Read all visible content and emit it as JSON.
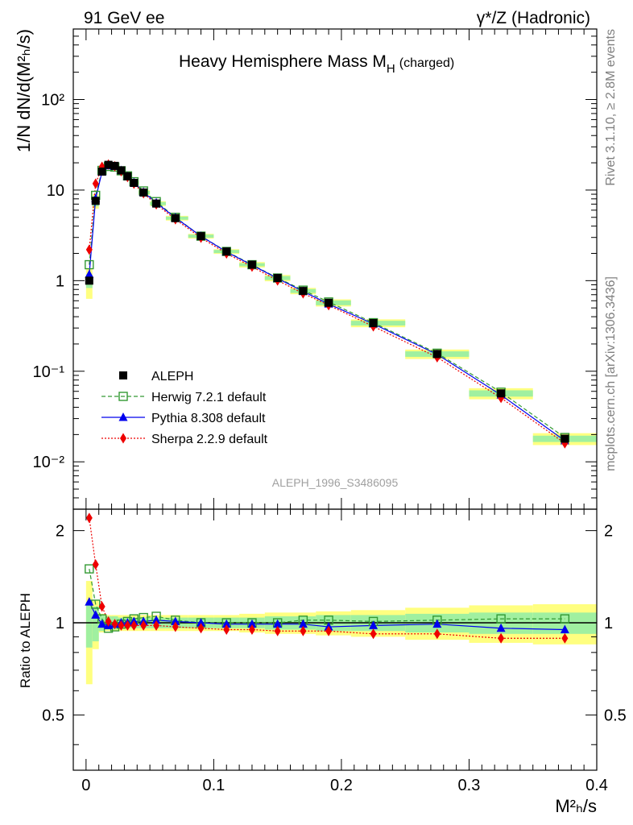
{
  "header": {
    "left": "91 GeV ee",
    "right": "γ*/Z (Hadronic)",
    "title_main": "Heavy Hemisphere Mass M",
    "title_sub": "H",
    "title_suffix": "(charged)"
  },
  "side_labels": {
    "rivet": "Rivet 3.1.10, ≥ 2.8M events",
    "mcplots": "mcplots.cern.ch [arXiv:1306.3436]"
  },
  "watermark": "ALEPH_1996_S3486095",
  "axes": {
    "ylabel_main": "1/N dN/d(M²ₕ/s)",
    "ylabel_ratio": "Ratio to ALEPH",
    "xlabel": "M²ₕ/s",
    "x_ticks": [
      "0",
      "0.1",
      "0.2",
      "0.3",
      "0.4"
    ],
    "y_ticks_main": [
      "10⁻²",
      "10⁻¹",
      "1",
      "10",
      "10²"
    ],
    "y_ticks_ratio": [
      "0.5",
      "1",
      "2"
    ]
  },
  "colors": {
    "data": "#000000",
    "herwig": "#339933",
    "pythia": "#0000ee",
    "sherpa": "#ee0000",
    "band_inner": "#a0f0a0",
    "band_outer": "#ffff80"
  },
  "chart_data": {
    "type": "line",
    "xlim": [
      -0.01,
      0.4
    ],
    "ylim_main": [
      0.003,
      600
    ],
    "ylim_ratio": [
      0.33,
      2.35
    ],
    "log_y": true,
    "legend_position": "middle-left",
    "x": [
      0.0025,
      0.0075,
      0.0125,
      0.0175,
      0.0225,
      0.0275,
      0.0325,
      0.0375,
      0.045,
      0.055,
      0.07,
      0.09,
      0.11,
      0.13,
      0.15,
      0.17,
      0.19,
      0.225,
      0.275,
      0.325,
      0.375
    ],
    "data": {
      "name": "ALEPH",
      "values": [
        1.0,
        7.6,
        16.0,
        19.0,
        18.5,
        16.5,
        14.2,
        12.0,
        9.4,
        7.1,
        4.9,
        3.1,
        2.1,
        1.5,
        1.07,
        0.77,
        0.57,
        0.34,
        0.155,
        0.057,
        0.018
      ],
      "band_inner": [
        0.17,
        0.13,
        0.06,
        0.05,
        0.05,
        0.04,
        0.04,
        0.04,
        0.04,
        0.04,
        0.04,
        0.04,
        0.04,
        0.04,
        0.05,
        0.05,
        0.06,
        0.06,
        0.07,
        0.08,
        0.08
      ],
      "band_outer": [
        0.37,
        0.18,
        0.07,
        0.06,
        0.06,
        0.06,
        0.06,
        0.06,
        0.06,
        0.06,
        0.06,
        0.06,
        0.06,
        0.07,
        0.08,
        0.08,
        0.09,
        0.1,
        0.12,
        0.14,
        0.15
      ]
    },
    "series": [
      {
        "name": "Herwig 7.2.1 default",
        "style": "dashed",
        "marker": "open-square",
        "ratio": [
          1.5,
          1.15,
          1.03,
          0.96,
          0.97,
          0.99,
          1.01,
          1.03,
          1.04,
          1.05,
          1.02,
          1.0,
          1.0,
          1.0,
          1.0,
          1.02,
          1.02,
          1.01,
          1.02,
          1.03,
          1.03
        ]
      },
      {
        "name": "Pythia 8.308 default",
        "style": "solid",
        "marker": "triangle",
        "ratio": [
          1.17,
          1.06,
          0.99,
          0.98,
          0.99,
          1.0,
          1.0,
          1.01,
          1.01,
          1.02,
          1.01,
          1.0,
          0.99,
          0.99,
          0.99,
          0.99,
          0.97,
          0.98,
          0.99,
          0.96,
          0.95
        ]
      },
      {
        "name": "Sherpa 2.2.9 default",
        "style": "dotted",
        "marker": "diamond",
        "ratio": [
          2.2,
          1.55,
          1.13,
          1.01,
          0.99,
          0.98,
          0.98,
          0.98,
          0.98,
          0.98,
          0.97,
          0.96,
          0.95,
          0.95,
          0.94,
          0.94,
          0.94,
          0.92,
          0.92,
          0.89,
          0.89
        ]
      }
    ]
  }
}
